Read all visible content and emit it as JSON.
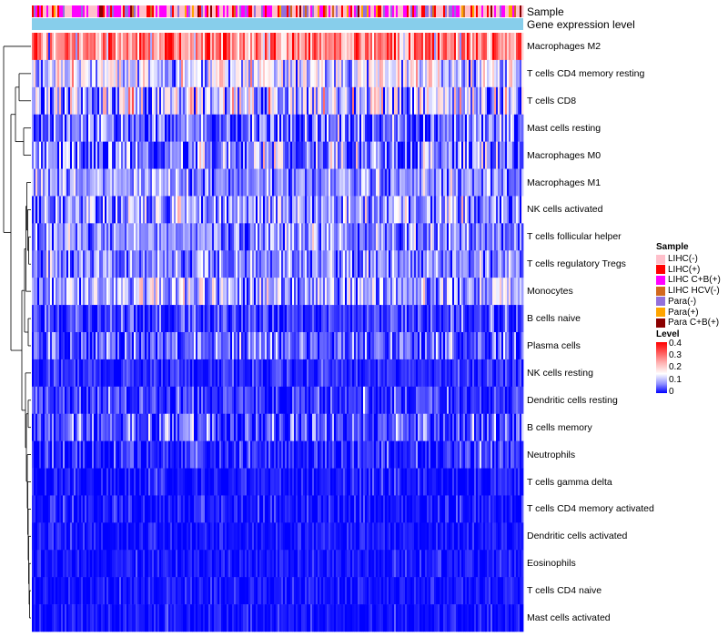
{
  "chart_data": {
    "type": "heatmap",
    "title": "",
    "column_annotations": [
      {
        "name": "Sample"
      },
      {
        "name": "Gene expression level"
      }
    ],
    "rows": [
      "Macrophages M2",
      "T cells CD4 memory resting",
      "T cells CD8",
      "Mast cells resting",
      "Macrophages M0",
      "Macrophages M1",
      "NK cells activated",
      "T cells follicular helper",
      "T cells regulatory  Tregs",
      "Monocytes",
      "B cells naive",
      "Plasma cells",
      "NK cells resting",
      "Dendritic cells resting",
      "B cells memory",
      "Neutrophils",
      "T cells gamma delta",
      "T cells CD4 memory activated",
      "Dendritic cells activated",
      "Eosinophils",
      "T cells CD4 naive",
      "Mast cells activated"
    ],
    "row_mean_level": [
      0.26,
      0.12,
      0.11,
      0.05,
      0.06,
      0.08,
      0.08,
      0.07,
      0.07,
      0.09,
      0.03,
      0.05,
      0.02,
      0.03,
      0.04,
      0.02,
      0.01,
      0.01,
      0.01,
      0.01,
      0.01,
      0.01
    ],
    "row_spread": [
      0.08,
      0.06,
      0.07,
      0.05,
      0.06,
      0.04,
      0.05,
      0.04,
      0.04,
      0.05,
      0.03,
      0.04,
      0.02,
      0.03,
      0.04,
      0.03,
      0.02,
      0.02,
      0.015,
      0.015,
      0.015,
      0.015
    ],
    "num_samples": 270,
    "level_range": [
      0,
      0.4
    ],
    "legends": {
      "sample": {
        "title": "Sample",
        "entries": [
          {
            "label": "LIHC(-)",
            "color": "#FFC0CB"
          },
          {
            "label": "LIHC(+)",
            "color": "#FF0000"
          },
          {
            "label": "LIHC C+B(+)",
            "color": "#FF00FF"
          },
          {
            "label": "LIHC HCV(-)",
            "color": "#D2691E"
          },
          {
            "label": "Para(-)",
            "color": "#9370DB"
          },
          {
            "label": "Para(+)",
            "color": "#FFA500"
          },
          {
            "label": "Para C+B(+)",
            "color": "#8B0000"
          }
        ]
      },
      "level": {
        "title": "Level",
        "ticks": [
          "0.4",
          "0.3",
          "0.2",
          "0.1",
          "0"
        ],
        "colors": {
          "low": "#0000FF",
          "mid": "#FFFFFF",
          "high": "#FF0000"
        }
      }
    },
    "annotation_colors": {
      "gene_expression_level": "#87CEEB"
    }
  }
}
